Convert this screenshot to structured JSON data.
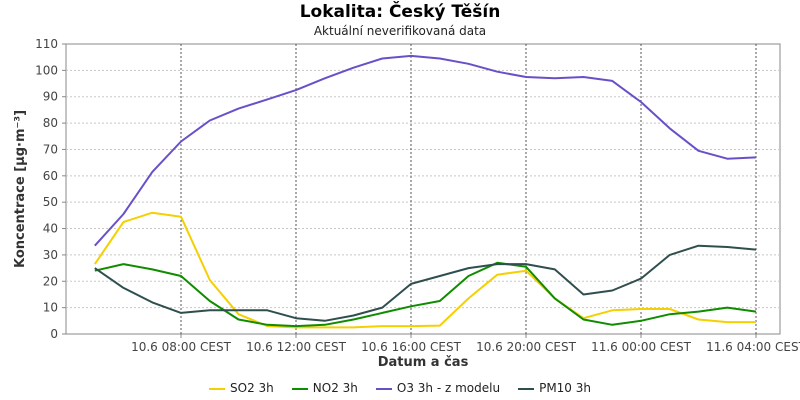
{
  "header": {
    "title": "Lokalita: Český Těšín",
    "subtitle": "Aktuální neverifikovaná data"
  },
  "chart_data": {
    "type": "line",
    "title": "Lokalita: Český Těšín",
    "subtitle": "Aktuální neverifikovaná data",
    "xlabel": "Datum a čas",
    "ylabel": "Koncentrace [µg·m⁻³]",
    "ylim": [
      0,
      110
    ],
    "yticks": [
      0,
      10,
      20,
      30,
      40,
      50,
      60,
      70,
      80,
      90,
      100,
      110
    ],
    "grid": true,
    "legend_position": "bottom",
    "x": [
      "10.6 05:00 CEST",
      "10.6 06:00 CEST",
      "10.6 07:00 CEST",
      "10.6 08:00 CEST",
      "10.6 09:00 CEST",
      "10.6 10:00 CEST",
      "10.6 11:00 CEST",
      "10.6 12:00 CEST",
      "10.6 13:00 CEST",
      "10.6 14:00 CEST",
      "10.6 15:00 CEST",
      "10.6 16:00 CEST",
      "10.6 17:00 CEST",
      "10.6 18:00 CEST",
      "10.6 19:00 CEST",
      "10.6 20:00 CEST",
      "10.6 21:00 CEST",
      "10.6 22:00 CEST",
      "10.6 23:00 CEST",
      "11.6 00:00 CEST",
      "11.6 01:00 CEST",
      "11.6 02:00 CEST",
      "11.6 03:00 CEST",
      "11.6 04:00 CEST",
      "11.6 05:00 CEST"
    ],
    "xticks": [
      "10.6 08:00 CEST",
      "10.6 12:00 CEST",
      "10.6 16:00 CEST",
      "10.6 20:00 CEST",
      "11.6 00:00 CEST",
      "11.6 04:00 CEST"
    ],
    "series": [
      {
        "name": "SO2 3h",
        "color": "#f5d000",
        "values": [
          26.5,
          42.5,
          46,
          44.5,
          20.5,
          7.5,
          3,
          2.5,
          2.5,
          2.5,
          3,
          3,
          3.2,
          13.5,
          22.5,
          24,
          13.5,
          6,
          9,
          9.5,
          9.5,
          5.5,
          4.5,
          4.5,
          null
        ]
      },
      {
        "name": "NO2 3h",
        "color": "#108c00",
        "values": [
          24,
          26.5,
          24.5,
          22,
          12.5,
          5.5,
          3.5,
          3,
          3.5,
          5.5,
          8,
          10.5,
          12.5,
          22,
          27,
          25.5,
          13.5,
          5.5,
          3.5,
          5,
          7.5,
          8.5,
          10,
          8.5,
          null
        ]
      },
      {
        "name": "O3 3h - z modelu",
        "color": "#6a50c8",
        "values": [
          33.5,
          45.5,
          61.5,
          73,
          81,
          85.5,
          89,
          92.5,
          97,
          101,
          104.5,
          105.5,
          104.5,
          102.5,
          99.5,
          97.5,
          97,
          97.5,
          96,
          88,
          78,
          69.5,
          66.5,
          67,
          null
        ]
      },
      {
        "name": "PM10 3h",
        "color": "#2f4f4f",
        "values": [
          25,
          17.5,
          12,
          8,
          9,
          9,
          9,
          6,
          5,
          7,
          10,
          19,
          22,
          25,
          26.5,
          26.5,
          24.5,
          15,
          16.5,
          21,
          30,
          33.5,
          33,
          32,
          null
        ]
      }
    ]
  }
}
